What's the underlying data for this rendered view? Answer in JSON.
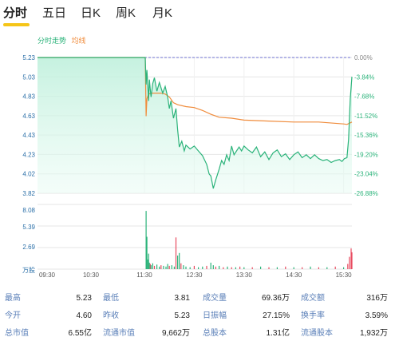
{
  "tabs": [
    {
      "label": "分时",
      "active": true
    },
    {
      "label": "五日",
      "active": false
    },
    {
      "label": "日K",
      "active": false
    },
    {
      "label": "周K",
      "active": false
    },
    {
      "label": "月K",
      "active": false
    }
  ],
  "colors": {
    "price_line": "#2bb37a",
    "avg_line": "#f08c3c",
    "up": "#e84a5f",
    "down": "#2bb37a",
    "prev_close_line": "#6b6fcf",
    "grid": "#e6e6e6",
    "stat_label": "#5a7fb8"
  },
  "chart_data": {
    "type": "line",
    "legend": [
      "分时走势",
      "均线"
    ],
    "y_price_ticks": [
      "5.23",
      "5.03",
      "4.83",
      "4.63",
      "4.43",
      "4.23",
      "4.02",
      "3.82"
    ],
    "y_pct_ticks": [
      "0.00%",
      "-3.84%",
      "-7.68%",
      "-11.52%",
      "-15.36%",
      "-19.20%",
      "-23.04%",
      "-26.88%"
    ],
    "ylim": [
      3.82,
      5.23
    ],
    "prev_close": 5.23,
    "x_ticks": [
      "09:30",
      "10:30",
      "11:30",
      "12:30",
      "13:30",
      "14:30",
      "15:30"
    ],
    "series": [
      {
        "name": "分时走势",
        "points": [
          [
            "09:30",
            5.23
          ],
          [
            "11:30",
            5.23
          ],
          [
            "11:31",
            5.23
          ],
          [
            "11:32",
            4.95
          ],
          [
            "11:33",
            5.1
          ],
          [
            "11:34",
            4.94
          ],
          [
            "11:35",
            4.78
          ],
          [
            "11:36",
            5.0
          ],
          [
            "11:37",
            4.9
          ],
          [
            "11:38",
            4.82
          ],
          [
            "11:40",
            4.96
          ],
          [
            "11:42",
            5.02
          ],
          [
            "11:45",
            4.88
          ],
          [
            "11:48",
            4.97
          ],
          [
            "11:52",
            4.86
          ],
          [
            "11:55",
            4.93
          ],
          [
            "11:58",
            4.82
          ],
          [
            "12:00",
            4.7
          ],
          [
            "12:02",
            4.78
          ],
          [
            "12:05",
            4.6
          ],
          [
            "12:08",
            4.7
          ],
          [
            "12:10",
            4.48
          ],
          [
            "12:12",
            4.3
          ],
          [
            "12:15",
            4.36
          ],
          [
            "12:18",
            4.26
          ],
          [
            "12:20",
            4.32
          ],
          [
            "12:25",
            4.28
          ],
          [
            "12:30",
            4.31
          ],
          [
            "12:35",
            4.26
          ],
          [
            "12:40",
            4.21
          ],
          [
            "12:45",
            4.12
          ],
          [
            "12:48",
            4.02
          ],
          [
            "12:50",
            4.0
          ],
          [
            "12:53",
            3.87
          ],
          [
            "12:56",
            3.96
          ],
          [
            "13:00",
            4.07
          ],
          [
            "13:03",
            4.16
          ],
          [
            "13:06",
            4.12
          ],
          [
            "13:09",
            4.22
          ],
          [
            "13:12",
            4.16
          ],
          [
            "13:15",
            4.31
          ],
          [
            "13:18",
            4.22
          ],
          [
            "13:21",
            4.26
          ],
          [
            "13:24",
            4.3
          ],
          [
            "13:27",
            4.26
          ],
          [
            "13:30",
            4.31
          ],
          [
            "13:35",
            4.27
          ],
          [
            "13:40",
            4.24
          ],
          [
            "13:45",
            4.3
          ],
          [
            "13:50",
            4.2
          ],
          [
            "13:55",
            4.25
          ],
          [
            "14:00",
            4.17
          ],
          [
            "14:05",
            4.24
          ],
          [
            "14:10",
            4.27
          ],
          [
            "14:15",
            4.2
          ],
          [
            "14:20",
            4.23
          ],
          [
            "14:25",
            4.17
          ],
          [
            "14:30",
            4.22
          ],
          [
            "14:35",
            4.25
          ],
          [
            "14:40",
            4.19
          ],
          [
            "14:45",
            4.22
          ],
          [
            "14:50",
            4.18
          ],
          [
            "14:55",
            4.22
          ],
          [
            "15:00",
            4.18
          ],
          [
            "15:05",
            4.16
          ],
          [
            "15:10",
            4.17
          ],
          [
            "15:15",
            4.14
          ],
          [
            "15:20",
            4.16
          ],
          [
            "15:25",
            4.17
          ],
          [
            "15:28",
            4.15
          ],
          [
            "15:31",
            4.18
          ],
          [
            "15:34",
            4.19
          ],
          [
            "15:36",
            4.38
          ],
          [
            "15:38",
            4.8
          ],
          [
            "15:40",
            5.03
          ]
        ]
      },
      {
        "name": "均线",
        "points": [
          [
            "09:30",
            5.23
          ],
          [
            "11:30",
            5.23
          ],
          [
            "11:31",
            5.23
          ],
          [
            "11:32",
            4.62
          ],
          [
            "11:33",
            4.8
          ],
          [
            "11:35",
            4.85
          ],
          [
            "11:40",
            4.86
          ],
          [
            "11:45",
            4.86
          ],
          [
            "11:50",
            4.86
          ],
          [
            "11:55",
            4.85
          ],
          [
            "12:00",
            4.82
          ],
          [
            "12:05",
            4.76
          ],
          [
            "12:10",
            4.74
          ],
          [
            "12:20",
            4.72
          ],
          [
            "12:30",
            4.71
          ],
          [
            "12:40",
            4.68
          ],
          [
            "12:50",
            4.64
          ],
          [
            "13:00",
            4.61
          ],
          [
            "13:15",
            4.6
          ],
          [
            "13:30",
            4.58
          ],
          [
            "14:00",
            4.57
          ],
          [
            "14:30",
            4.56
          ],
          [
            "15:00",
            4.56
          ],
          [
            "15:30",
            4.54
          ],
          [
            "15:34",
            4.535
          ],
          [
            "15:40",
            4.56
          ]
        ]
      }
    ],
    "volume": {
      "y_ticks": [
        "8.08",
        "5.39",
        "2.69",
        "万股"
      ],
      "ylim": [
        0,
        10
      ],
      "bars": [
        [
          "11:32",
          9.0,
          "down"
        ],
        [
          "11:33",
          5.0,
          "down"
        ],
        [
          "11:34",
          1.5,
          "down"
        ],
        [
          "11:35",
          2.4,
          "down"
        ],
        [
          "11:36",
          1.0,
          "down"
        ],
        [
          "11:37",
          0.8,
          "up"
        ],
        [
          "11:38",
          0.6,
          "down"
        ],
        [
          "11:40",
          0.9,
          "down"
        ],
        [
          "11:42",
          0.5,
          "up"
        ],
        [
          "11:45",
          0.7,
          "down"
        ],
        [
          "11:48",
          0.4,
          "down"
        ],
        [
          "11:50",
          0.6,
          "up"
        ],
        [
          "11:53",
          0.5,
          "down"
        ],
        [
          "11:56",
          0.4,
          "down"
        ],
        [
          "11:58",
          0.8,
          "down"
        ],
        [
          "12:00",
          0.5,
          "up"
        ],
        [
          "12:03",
          0.6,
          "down"
        ],
        [
          "12:06",
          0.4,
          "down"
        ],
        [
          "12:08",
          4.9,
          "up"
        ],
        [
          "12:10",
          2.1,
          "down"
        ],
        [
          "12:12",
          2.5,
          "down"
        ],
        [
          "12:14",
          0.9,
          "up"
        ],
        [
          "12:17",
          0.6,
          "down"
        ],
        [
          "12:20",
          0.4,
          "down"
        ],
        [
          "12:25",
          0.3,
          "down"
        ],
        [
          "12:30",
          0.5,
          "up"
        ],
        [
          "12:35",
          0.3,
          "down"
        ],
        [
          "12:40",
          0.4,
          "down"
        ],
        [
          "12:45",
          0.5,
          "up"
        ],
        [
          "12:50",
          1.0,
          "down"
        ],
        [
          "12:53",
          0.6,
          "down"
        ],
        [
          "12:56",
          0.4,
          "up"
        ],
        [
          "13:00",
          0.5,
          "down"
        ],
        [
          "13:05",
          0.3,
          "up"
        ],
        [
          "13:10",
          0.4,
          "down"
        ],
        [
          "13:15",
          0.3,
          "up"
        ],
        [
          "13:20",
          0.3,
          "down"
        ],
        [
          "13:25",
          0.4,
          "up"
        ],
        [
          "13:30",
          0.3,
          "down"
        ],
        [
          "13:40",
          0.3,
          "up"
        ],
        [
          "13:50",
          0.4,
          "down"
        ],
        [
          "14:00",
          0.3,
          "up"
        ],
        [
          "14:10",
          0.3,
          "down"
        ],
        [
          "14:20",
          0.4,
          "up"
        ],
        [
          "14:30",
          0.3,
          "down"
        ],
        [
          "14:40",
          0.3,
          "up"
        ],
        [
          "14:50",
          0.4,
          "down"
        ],
        [
          "15:00",
          0.3,
          "up"
        ],
        [
          "15:10",
          0.3,
          "down"
        ],
        [
          "15:20",
          0.4,
          "up"
        ],
        [
          "15:30",
          0.3,
          "down"
        ],
        [
          "15:35",
          0.8,
          "up"
        ],
        [
          "15:37",
          1.9,
          "up"
        ],
        [
          "15:39",
          3.2,
          "up"
        ],
        [
          "15:40",
          2.6,
          "up"
        ]
      ]
    }
  },
  "stats": [
    [
      {
        "label": "最高",
        "value": "5.23"
      },
      {
        "label": "最低",
        "value": "3.81"
      },
      {
        "label": "成交量",
        "value": "69.36万"
      },
      {
        "label": "成交额",
        "value": "316万"
      }
    ],
    [
      {
        "label": "今开",
        "value": "4.60"
      },
      {
        "label": "昨收",
        "value": "5.23"
      },
      {
        "label": "日振幅",
        "value": "27.15%"
      },
      {
        "label": "换手率",
        "value": "3.59%"
      }
    ],
    [
      {
        "label": "总市值",
        "value": "6.55亿"
      },
      {
        "label": "流通市值",
        "value": "9,662万"
      },
      {
        "label": "总股本",
        "value": "1.31亿"
      },
      {
        "label": "流通股本",
        "value": "1,932万"
      }
    ]
  ]
}
